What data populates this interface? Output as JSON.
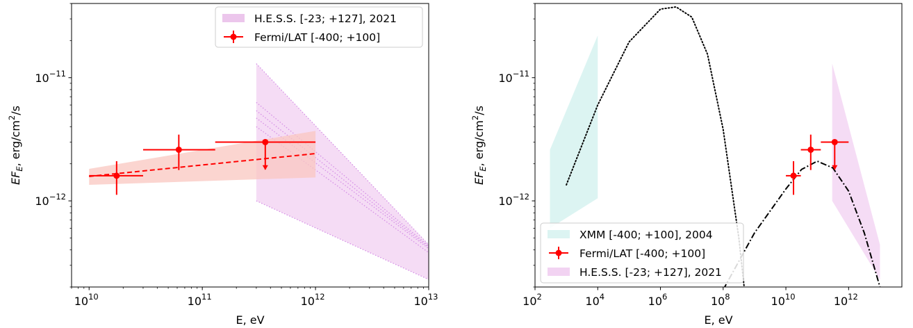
{
  "chart_data": [
    {
      "type": "scatter",
      "xlabel": "E, eV",
      "ylabel_main": "EF",
      "ylabel_sub": "E",
      "ylabel_rest": ", erg/cm",
      "ylabel_sup": "2",
      "ylabel_end": "/s",
      "xscale": "log",
      "yscale": "log",
      "xlim": [
        7000000000.0,
        10000000000000.0
      ],
      "ylim": [
        2e-13,
        4e-11
      ],
      "x_ticks": [
        {
          "value": 10000000000.0,
          "base": "10",
          "exp": "10"
        },
        {
          "value": 100000000000.0,
          "base": "10",
          "exp": "11"
        },
        {
          "value": 1000000000000.0,
          "base": "10",
          "exp": "12"
        },
        {
          "value": 10000000000000.0,
          "base": "10",
          "exp": "13"
        }
      ],
      "y_ticks": [
        {
          "value": 1e-12,
          "base": "10",
          "exp": "−12"
        },
        {
          "value": 1e-11,
          "base": "10",
          "exp": "−11"
        }
      ],
      "legend_position": "top-right",
      "legend": [
        {
          "label": "H.E.S.S. [-23; +127], 2021",
          "kind": "patch",
          "color": "#ecc6ec"
        },
        {
          "label": "Fermi/LAT [-400; +100]",
          "kind": "errorbar",
          "color": "#ff0000"
        }
      ],
      "fermi_points": [
        {
          "x": 17500000000.0,
          "xlo": 10000000000.0,
          "xhi": 30000000000.0,
          "y": 1.6e-12,
          "ylo": 1.12e-12,
          "yhi": 2.1e-12,
          "upper_limit": false
        },
        {
          "x": 62000000000.0,
          "xlo": 30000000000.0,
          "xhi": 130000000000.0,
          "y": 2.6e-12,
          "ylo": 1.78e-12,
          "yhi": 3.45e-12,
          "upper_limit": false
        },
        {
          "x": 360000000000.0,
          "xlo": 130000000000.0,
          "xhi": 1000000000000.0,
          "y": 3e-12,
          "ylo": 1.8e-12,
          "yhi": 3e-12,
          "upper_limit": true
        }
      ],
      "fermi_fit": {
        "x": [
          10000000000.0,
          1000000000000.0
        ],
        "y": [
          1.58e-12,
          2.42e-12
        ],
        "style": "dashed",
        "color": "#ff0000"
      },
      "fermi_band": {
        "x": [
          10000000000.0,
          1000000000000.0
        ],
        "y_lo": [
          1.35e-12,
          1.55e-12
        ],
        "y_hi": [
          1.82e-12,
          3.7e-12
        ],
        "color": "#f9c7c0"
      },
      "hess_band": {
        "x": [
          300000000000.0,
          10000000000000.0
        ],
        "y_lo": [
          1e-12,
          2.3e-13
        ],
        "y_hi": [
          1.3e-11,
          4.4e-13
        ],
        "color": "#f2d3f2"
      },
      "hess_lines": [
        {
          "x": [
            300000000000.0,
            10000000000000.0
          ],
          "y": [
            1.3e-11,
            4.4e-13
          ]
        },
        {
          "x": [
            300000000000.0,
            10000000000000.0
          ],
          "y": [
            6.3e-12,
            4.3e-13
          ]
        },
        {
          "x": [
            300000000000.0,
            10000000000000.0
          ],
          "y": [
            5.4e-12,
            4.2e-13
          ]
        },
        {
          "x": [
            300000000000.0,
            10000000000000.0
          ],
          "y": [
            4.7e-12,
            4.1e-13
          ]
        },
        {
          "x": [
            300000000000.0,
            10000000000000.0
          ],
          "y": [
            4e-12,
            3.8e-13
          ]
        },
        {
          "x": [
            300000000000.0,
            10000000000000.0
          ],
          "y": [
            1e-12,
            2.3e-13
          ]
        }
      ]
    },
    {
      "type": "line",
      "xlabel": "E, eV",
      "ylabel_main": "EF",
      "ylabel_sub": "E",
      "ylabel_rest": ", erg/cm",
      "ylabel_sup": "2",
      "ylabel_end": "/s",
      "xscale": "log",
      "yscale": "log",
      "xlim": [
        100.0,
        50000000000000.0
      ],
      "ylim": [
        2e-13,
        4e-11
      ],
      "x_ticks": [
        {
          "value": 100.0,
          "base": "10",
          "exp": "2"
        },
        {
          "value": 10000.0,
          "base": "10",
          "exp": "4"
        },
        {
          "value": 1000000.0,
          "base": "10",
          "exp": "6"
        },
        {
          "value": 100000000.0,
          "base": "10",
          "exp": "8"
        },
        {
          "value": 10000000000.0,
          "base": "10",
          "exp": "10"
        },
        {
          "value": 1000000000000.0,
          "base": "10",
          "exp": "12"
        }
      ],
      "y_ticks": [
        {
          "value": 1e-12,
          "base": "10",
          "exp": "−12"
        },
        {
          "value": 1e-11,
          "base": "10",
          "exp": "−11"
        }
      ],
      "legend_position": "bottom-left",
      "legend": [
        {
          "label": "XMM [-400; +100], 2004",
          "kind": "patch",
          "color": "#dcf4f2"
        },
        {
          "label": "Fermi/LAT [-400; +100]",
          "kind": "errorbar",
          "color": "#ff0000"
        },
        {
          "label": "H.E.S.S. [-23; +127], 2021",
          "kind": "patch",
          "color": "#f2d3f2"
        }
      ],
      "xmm_band": {
        "x": [
          300.0,
          10000.0
        ],
        "y_lo": [
          6e-13,
          1.05e-12
        ],
        "y_hi": [
          2.6e-12,
          2.2e-11
        ],
        "color": "#dcf4f2"
      },
      "hess_band": {
        "x": [
          300000000000.0,
          10000000000000.0
        ],
        "y_lo": [
          1e-12,
          2.3e-13
        ],
        "y_hi": [
          1.3e-11,
          4.4e-13
        ],
        "color": "#f2d3f2"
      },
      "synchrotron_curve": {
        "style": "dotted",
        "x": [
          1000.0,
          10000.0,
          100000.0,
          1000000.0,
          3160000.0,
          10000000.0,
          31600000.0,
          100000000.0,
          316000000.0,
          500000000.0
        ],
        "y": [
          1.35e-12,
          6e-12,
          1.95e-11,
          3.6e-11,
          3.75e-11,
          3.1e-11,
          1.55e-11,
          3.8e-12,
          5e-13,
          1.7e-13
        ]
      },
      "ic_curve": {
        "style": "dashdot",
        "x": [
          100000000.0,
          1000000000.0,
          10000000000.0,
          31600000000.0,
          100000000000.0,
          316000000000.0,
          1000000000000.0,
          3160000000000.0,
          10000000000000.0
        ],
        "y": [
          1.9e-13,
          5.5e-13,
          1.25e-12,
          1.8e-12,
          2.1e-12,
          1.85e-12,
          1.2e-12,
          5.5e-13,
          2e-13
        ]
      },
      "fermi_points": [
        {
          "x": 17500000000.0,
          "xlo": 10000000000.0,
          "xhi": 30000000000.0,
          "y": 1.6e-12,
          "ylo": 1.12e-12,
          "yhi": 2.1e-12,
          "upper_limit": false
        },
        {
          "x": 62000000000.0,
          "xlo": 30000000000.0,
          "xhi": 130000000000.0,
          "y": 2.6e-12,
          "ylo": 1.78e-12,
          "yhi": 3.45e-12,
          "upper_limit": false
        },
        {
          "x": 360000000000.0,
          "xlo": 130000000000.0,
          "xhi": 1000000000000.0,
          "y": 3e-12,
          "ylo": 1.8e-12,
          "yhi": 3e-12,
          "upper_limit": true
        }
      ]
    }
  ]
}
